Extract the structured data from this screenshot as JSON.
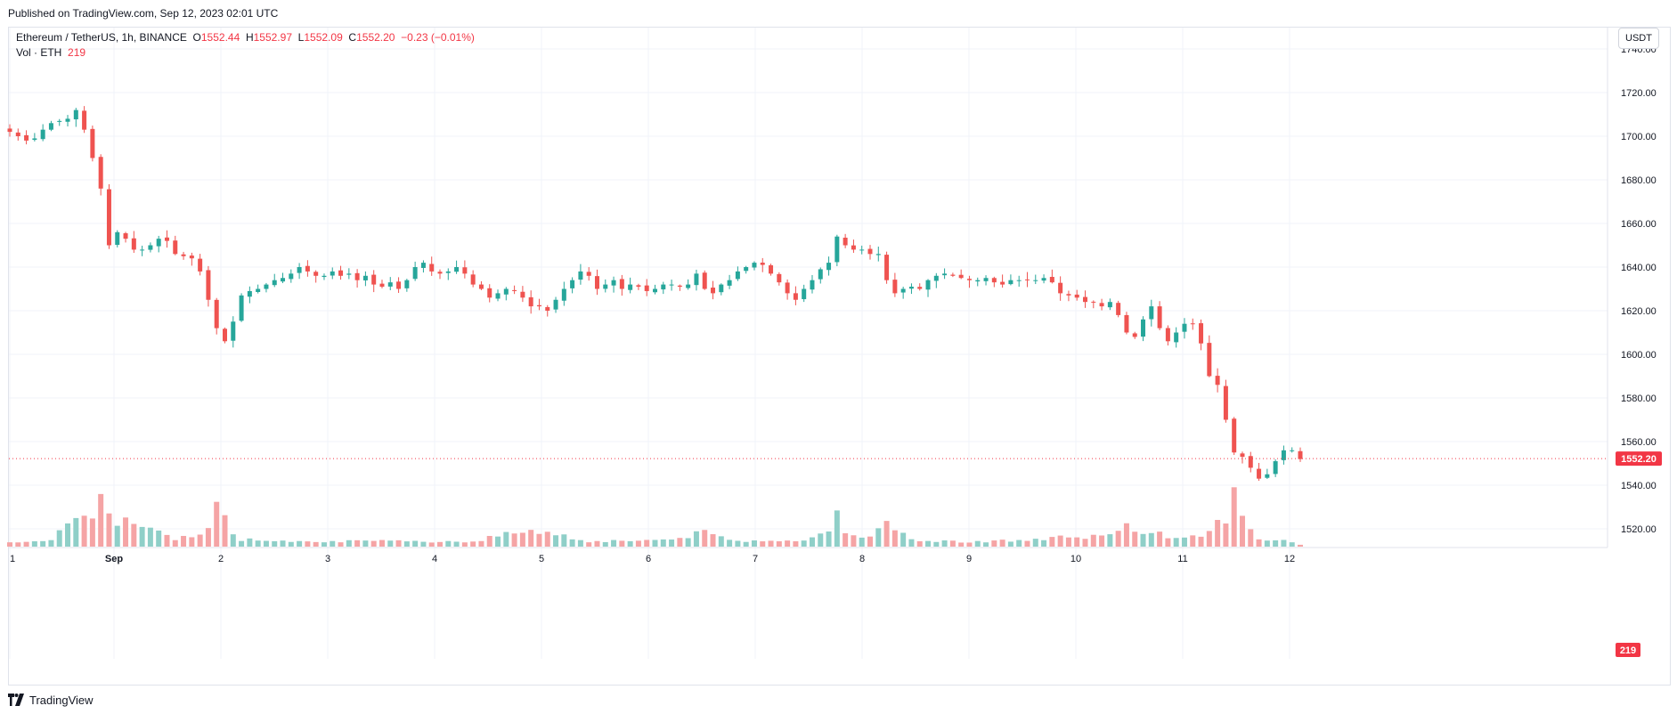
{
  "header": {
    "published": "Published on TradingView.com, Sep 12, 2023 02:01 UTC"
  },
  "legend": {
    "symbol": "Ethereum / TetherUS, 1h, BINANCE",
    "o_label": "O",
    "o_value": "1552.44",
    "h_label": "H",
    "h_value": "1552.97",
    "l_label": "L",
    "l_value": "1552.09",
    "c_label": "C",
    "c_value": "1552.20",
    "change": "−0.23 (−0.01%)",
    "vol_label": "Vol · ETH",
    "vol_value": "219"
  },
  "currency_button": "USDT",
  "footer": {
    "brand": "TradingView",
    "logo_icon": "tradingview-logo-icon"
  },
  "colors": {
    "up": "#26a69a",
    "down": "#ef5350",
    "vol_up": "#8fcfc8",
    "vol_down": "#f5a4a5",
    "grid": "#f0f3fa",
    "price_tag": "#f23645"
  },
  "chart_data": {
    "type": "candlestick",
    "interval": "1h",
    "ylim": [
      1505,
      1748
    ],
    "y_ticks": [
      "1740.00",
      "1720.00",
      "1700.00",
      "1680.00",
      "1660.00",
      "1640.00",
      "1620.00",
      "1600.00",
      "1580.00",
      "1560.00",
      "1540.00",
      "1520.00"
    ],
    "x_ticks": [
      "1",
      "Sep",
      "2",
      "3",
      "4",
      "5",
      "6",
      "7",
      "8",
      "9",
      "10",
      "11",
      "12"
    ],
    "last_price": "1552.20",
    "last_volume": "219",
    "grid": true,
    "price_anchors": [
      [
        0,
        1702
      ],
      [
        1,
        1700
      ],
      [
        2,
        1698
      ],
      [
        3,
        1699
      ],
      [
        4,
        1703
      ],
      [
        5,
        1706
      ],
      [
        6,
        1707
      ],
      [
        7,
        1708
      ],
      [
        8,
        1712
      ],
      [
        9,
        1703
      ],
      [
        10,
        1690
      ],
      [
        11,
        1676
      ],
      [
        12,
        1650
      ],
      [
        13,
        1656
      ],
      [
        14,
        1653
      ],
      [
        15,
        1648
      ],
      [
        16,
        1648
      ],
      [
        17,
        1650
      ],
      [
        18,
        1653
      ],
      [
        19,
        1652
      ],
      [
        20,
        1646
      ],
      [
        21,
        1645
      ],
      [
        22,
        1644
      ],
      [
        23,
        1638
      ],
      [
        24,
        1625
      ],
      [
        25,
        1612
      ],
      [
        26,
        1606
      ],
      [
        27,
        1615
      ],
      [
        28,
        1627
      ],
      [
        29,
        1629
      ],
      [
        30,
        1630
      ],
      [
        31,
        1632
      ],
      [
        32,
        1634
      ],
      [
        33,
        1635
      ],
      [
        34,
        1637
      ],
      [
        35,
        1640
      ],
      [
        36,
        1638
      ],
      [
        37,
        1636
      ],
      [
        38,
        1636
      ],
      [
        39,
        1638
      ],
      [
        40,
        1636
      ],
      [
        41,
        1637
      ],
      [
        42,
        1634
      ],
      [
        43,
        1636
      ],
      [
        44,
        1632
      ],
      [
        45,
        1631
      ],
      [
        46,
        1633
      ],
      [
        47,
        1630
      ],
      [
        48,
        1634
      ],
      [
        49,
        1640
      ],
      [
        50,
        1642
      ],
      [
        51,
        1638
      ],
      [
        52,
        1637
      ],
      [
        53,
        1638
      ],
      [
        54,
        1640
      ],
      [
        55,
        1637
      ],
      [
        56,
        1632
      ],
      [
        57,
        1630
      ],
      [
        58,
        1626
      ],
      [
        59,
        1628
      ],
      [
        60,
        1630
      ],
      [
        61,
        1629
      ],
      [
        62,
        1626
      ],
      [
        63,
        1622
      ],
      [
        64,
        1622
      ],
      [
        65,
        1620
      ],
      [
        66,
        1625
      ],
      [
        67,
        1630
      ],
      [
        68,
        1634
      ],
      [
        69,
        1638
      ],
      [
        70,
        1636
      ],
      [
        71,
        1630
      ],
      [
        72,
        1632
      ],
      [
        73,
        1634
      ],
      [
        74,
        1630
      ],
      [
        75,
        1632
      ],
      [
        76,
        1631
      ],
      [
        77,
        1629
      ],
      [
        78,
        1630
      ],
      [
        79,
        1632
      ],
      [
        80,
        1632
      ],
      [
        81,
        1631
      ],
      [
        82,
        1632
      ],
      [
        83,
        1637
      ],
      [
        84,
        1630
      ],
      [
        85,
        1628
      ],
      [
        86,
        1632
      ],
      [
        87,
        1634
      ],
      [
        88,
        1638
      ],
      [
        89,
        1640
      ],
      [
        90,
        1642
      ],
      [
        91,
        1641
      ],
      [
        92,
        1637
      ],
      [
        93,
        1633
      ],
      [
        94,
        1628
      ],
      [
        95,
        1625
      ],
      [
        96,
        1630
      ],
      [
        97,
        1634
      ],
      [
        98,
        1639
      ],
      [
        99,
        1642
      ],
      [
        100,
        1654
      ],
      [
        101,
        1650
      ],
      [
        102,
        1648
      ],
      [
        103,
        1648
      ],
      [
        104,
        1646
      ],
      [
        105,
        1646
      ],
      [
        106,
        1634
      ],
      [
        107,
        1628
      ],
      [
        108,
        1630
      ],
      [
        109,
        1631
      ],
      [
        110,
        1630
      ],
      [
        111,
        1634
      ],
      [
        112,
        1636
      ],
      [
        113,
        1637
      ],
      [
        114,
        1636
      ],
      [
        115,
        1635
      ],
      [
        116,
        1634
      ],
      [
        117,
        1634
      ],
      [
        118,
        1635
      ],
      [
        119,
        1633
      ],
      [
        120,
        1632
      ],
      [
        121,
        1634
      ],
      [
        122,
        1634
      ],
      [
        123,
        1634
      ],
      [
        124,
        1634
      ],
      [
        125,
        1635
      ],
      [
        126,
        1633
      ],
      [
        127,
        1628
      ],
      [
        128,
        1627
      ],
      [
        129,
        1626
      ],
      [
        130,
        1624
      ],
      [
        131,
        1624
      ],
      [
        132,
        1622
      ],
      [
        133,
        1624
      ],
      [
        134,
        1618
      ],
      [
        135,
        1610
      ],
      [
        136,
        1608
      ],
      [
        137,
        1616
      ],
      [
        138,
        1622
      ],
      [
        139,
        1612
      ],
      [
        140,
        1606
      ],
      [
        141,
        1610
      ],
      [
        142,
        1614
      ],
      [
        143,
        1614
      ],
      [
        144,
        1605
      ],
      [
        145,
        1590
      ],
      [
        146,
        1586
      ],
      [
        147,
        1570
      ],
      [
        148,
        1555
      ],
      [
        149,
        1553
      ],
      [
        150,
        1548
      ],
      [
        151,
        1543
      ],
      [
        152,
        1545
      ],
      [
        153,
        1551
      ],
      [
        154,
        1556
      ],
      [
        155,
        1556
      ],
      [
        156,
        1552
      ]
    ],
    "volume_anchors": [
      [
        0,
        6
      ],
      [
        5,
        6
      ],
      [
        9,
        42
      ],
      [
        10,
        40
      ],
      [
        11,
        60
      ],
      [
        12,
        33
      ],
      [
        13,
        24
      ],
      [
        14,
        30
      ],
      [
        20,
        8
      ],
      [
        24,
        20
      ],
      [
        25,
        42
      ],
      [
        26,
        32
      ],
      [
        27,
        16
      ],
      [
        28,
        8
      ],
      [
        40,
        6
      ],
      [
        56,
        6
      ],
      [
        60,
        14
      ],
      [
        63,
        20
      ],
      [
        67,
        12
      ],
      [
        70,
        6
      ],
      [
        80,
        8
      ],
      [
        84,
        16
      ],
      [
        88,
        6
      ],
      [
        92,
        8
      ],
      [
        96,
        6
      ],
      [
        99,
        20
      ],
      [
        100,
        36
      ],
      [
        101,
        20
      ],
      [
        104,
        10
      ],
      [
        106,
        24
      ],
      [
        110,
        6
      ],
      [
        118,
        6
      ],
      [
        125,
        8
      ],
      [
        126,
        12
      ],
      [
        130,
        8
      ],
      [
        133,
        16
      ],
      [
        135,
        24
      ],
      [
        137,
        18
      ],
      [
        140,
        12
      ],
      [
        144,
        10
      ],
      [
        146,
        34
      ],
      [
        147,
        24
      ],
      [
        148,
        58
      ],
      [
        149,
        30
      ],
      [
        150,
        18
      ],
      [
        151,
        10
      ],
      [
        152,
        8
      ],
      [
        155,
        6
      ],
      [
        156,
        2
      ]
    ]
  }
}
